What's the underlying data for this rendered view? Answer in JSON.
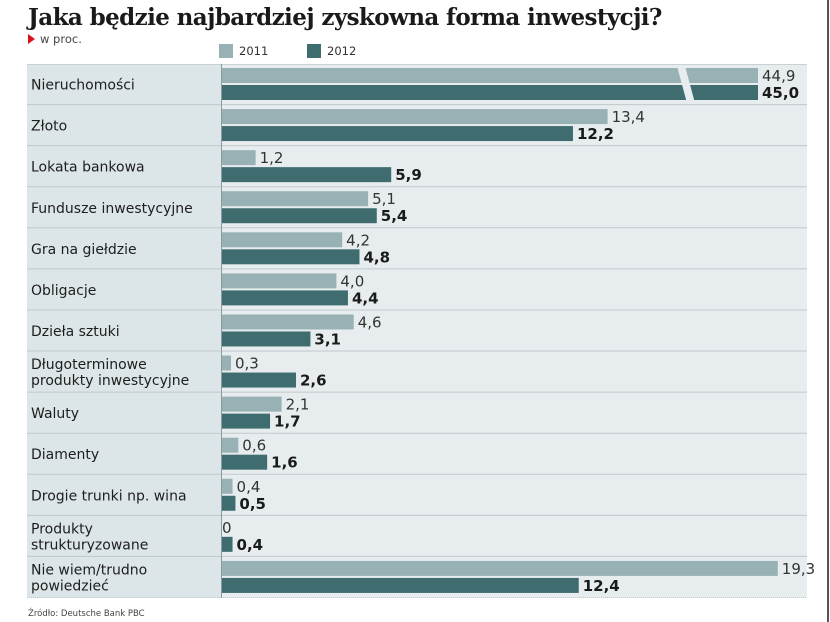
{
  "title": "Jaka będzie najbardziej zyskowna forma inwestycji?",
  "subtitle": "w proc.",
  "source": "Źródło: Deutsche Bank PBC",
  "colors": {
    "series_2011": "#98b1b4",
    "series_2012": "#3f6c6e",
    "label_bg": "#dce5e8",
    "plot_bg": "#e7edef",
    "accent": "#d8121b"
  },
  "chart_data": {
    "type": "bar",
    "orientation": "horizontal",
    "title": "Jaka będzie najbardziej zyskowna forma inwestycji?",
    "subtitle": "w proc.",
    "xlabel": "",
    "ylabel": "",
    "unit": "%",
    "decimal_separator": ",",
    "legend_position": "top",
    "grid": false,
    "axis_break": "Nieruchomości bars are broken (truncated) with a diagonal cut",
    "categories": [
      [
        "Nieruchomości"
      ],
      [
        "Złoto"
      ],
      [
        "Lokata bankowa"
      ],
      [
        "Fundusze inwestycyjne"
      ],
      [
        "Gra na giełdzie"
      ],
      [
        "Obligacje"
      ],
      [
        "Dzieła sztuki"
      ],
      [
        "Długoterminowe",
        "produkty inwestycyjne"
      ],
      [
        "Waluty"
      ],
      [
        "Diamenty"
      ],
      [
        "Drogie trunki np. wina"
      ],
      [
        "Produkty",
        "strukturyzowane"
      ],
      [
        "Nie wiem/trudno",
        "powiedzieć"
      ]
    ],
    "series": [
      {
        "name": "2011",
        "values": [
          44.9,
          13.4,
          1.2,
          5.1,
          4.2,
          4.0,
          4.6,
          0.3,
          2.1,
          0.6,
          0.4,
          0,
          19.3
        ],
        "labels": [
          "44,9",
          "13,4",
          "1,2",
          "5,1",
          "4,2",
          "4,0",
          "4,6",
          "0,3",
          "2,1",
          "0,6",
          "0,4",
          "0",
          "19,3"
        ]
      },
      {
        "name": "2012",
        "values": [
          45.0,
          12.2,
          5.9,
          5.4,
          4.8,
          4.4,
          3.1,
          2.6,
          1.7,
          1.6,
          0.5,
          0.4,
          12.4
        ],
        "labels": [
          "45,0",
          "12,2",
          "5,9",
          "5,4",
          "4,8",
          "4,4",
          "3,1",
          "2,6",
          "1,7",
          "1,6",
          "0,5",
          "0,4",
          "12,4"
        ]
      }
    ]
  }
}
